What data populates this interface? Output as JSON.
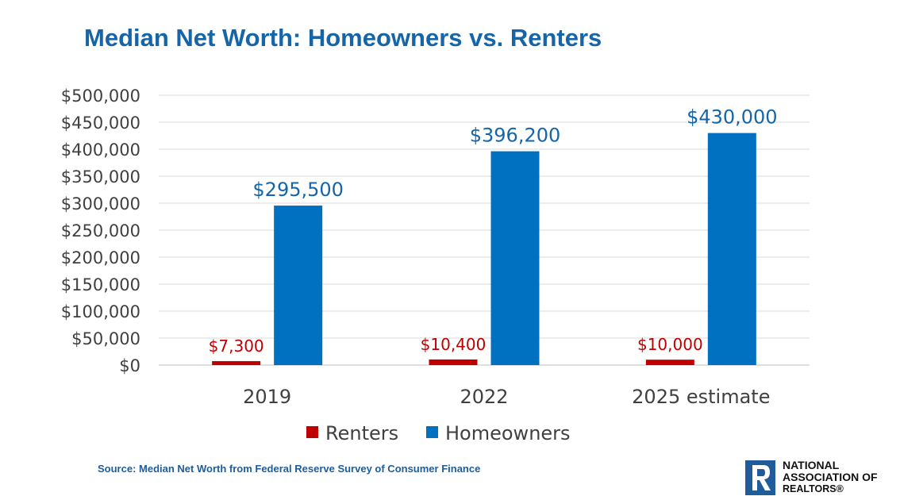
{
  "chart_data": {
    "type": "bar",
    "title": "Median Net Worth: Homeowners vs. Renters",
    "categories": [
      "2019",
      "2022",
      "2025 estimate"
    ],
    "series": [
      {
        "name": "Renters",
        "values": [
          7300,
          10400,
          10000
        ],
        "labels": [
          "$7,300",
          "$10,400",
          "$10,000"
        ],
        "color": "#C00000"
      },
      {
        "name": "Homeowners",
        "values": [
          295500,
          396200,
          430000
        ],
        "labels": [
          "$295,500",
          "$396,200",
          "$430,000"
        ],
        "color": "#0070C0"
      }
    ],
    "yticks": [
      "$0",
      "$50,000",
      "$100,000",
      "$150,000",
      "$200,000",
      "$250,000",
      "$300,000",
      "$350,000",
      "$400,000",
      "$450,000",
      "$500,000"
    ],
    "ylim": [
      0,
      500000
    ],
    "grid": true,
    "legend": "bottom"
  },
  "source": "Source: Median Net Worth from Federal Reserve Survey of Consumer Finance",
  "logo": {
    "line1": "NATIONAL",
    "line2": "ASSOCIATION OF",
    "line3": "REALTORS®",
    "mark": "R",
    "color": "#1F5C99"
  }
}
